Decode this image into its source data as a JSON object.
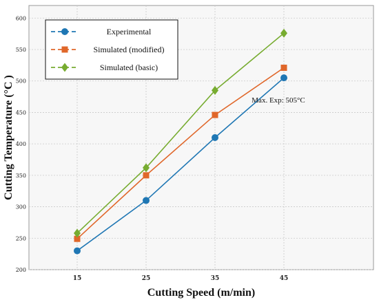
{
  "chart_data": {
    "type": "line",
    "xlabel": "Cutting Speed (m/min)",
    "ylabel": "Cutting Temperature (°C )",
    "x": [
      15,
      25,
      35,
      45
    ],
    "x_tick_labels": [
      "15",
      "25",
      "35",
      "45"
    ],
    "xlim": [
      8,
      58
    ],
    "ylim": [
      200,
      620
    ],
    "y_ticks": [
      200,
      250,
      300,
      350,
      400,
      450,
      500,
      550,
      600
    ],
    "grid": true,
    "legend_position": "top-left",
    "series": [
      {
        "name": "Experimental",
        "values": [
          230,
          310,
          410,
          505
        ],
        "color": "#1f77b4",
        "marker": "circle"
      },
      {
        "name": "Simulated (modified)",
        "values": [
          249,
          350,
          446,
          521
        ],
        "color": "#e0672a",
        "marker": "square"
      },
      {
        "name": "Simulated (basic)",
        "values": [
          258,
          362,
          485,
          576
        ],
        "color": "#77ac30",
        "marker": "diamond"
      }
    ],
    "annotations": [
      {
        "text": "Max. Exp: 505°C",
        "x": 45,
        "y": 470
      }
    ]
  }
}
